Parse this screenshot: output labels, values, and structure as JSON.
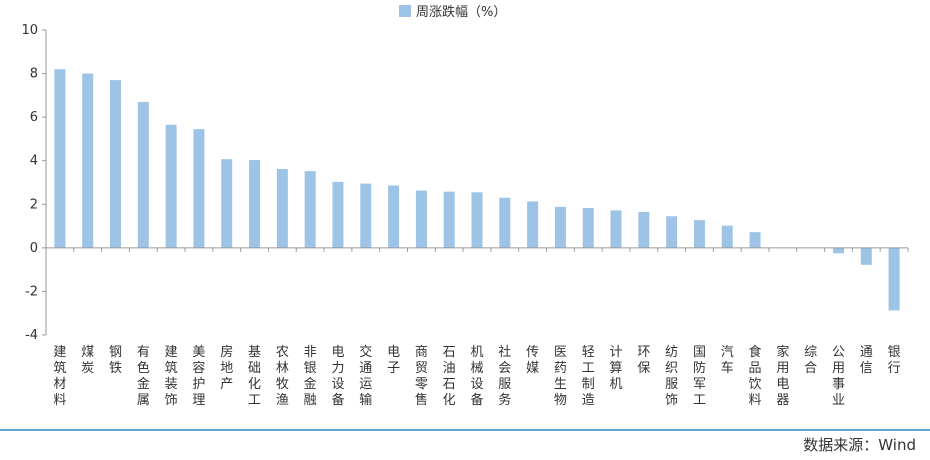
{
  "chart_data": {
    "type": "bar",
    "title": "",
    "xlabel": "",
    "ylabel": "",
    "ylim": [
      -4,
      10
    ],
    "yticks": [
      -4,
      -2,
      0,
      2,
      4,
      6,
      8,
      10
    ],
    "grid": false,
    "legend": "top-center",
    "series": [
      {
        "name": "周涨跌幅（%）",
        "color": "#9DC3E6",
        "values": [
          8.2,
          8.0,
          7.7,
          6.7,
          5.65,
          5.45,
          4.07,
          4.03,
          3.62,
          3.52,
          3.03,
          2.95,
          2.86,
          2.63,
          2.58,
          2.55,
          2.3,
          2.13,
          1.88,
          1.83,
          1.72,
          1.65,
          1.45,
          1.27,
          1.02,
          0.72,
          0.0,
          0.0,
          -0.25,
          -0.78,
          -2.87
        ]
      }
    ],
    "categories": [
      "建筑材料",
      "煤炭",
      "钢铁",
      "有色金属",
      "建筑装饰",
      "美容护理",
      "房地产",
      "基础化工",
      "农林牧渔",
      "非银金融",
      "电力设备",
      "交通运输",
      "电子",
      "商贸零售",
      "石油石化",
      "机械设备",
      "社会服务",
      "传媒",
      "医药生物",
      "轻工制造",
      "计算机",
      "环保",
      "纺织服饰",
      "国防军工",
      "汽车",
      "食品饮料",
      "家用电器",
      "综合",
      "公用事业",
      "通信",
      "银行"
    ]
  },
  "source": "数据来源：Wind",
  "colors": {
    "bar": "#9DC3E6",
    "axis": "#999999",
    "divider": "#2E86C1",
    "text": "#333333"
  }
}
